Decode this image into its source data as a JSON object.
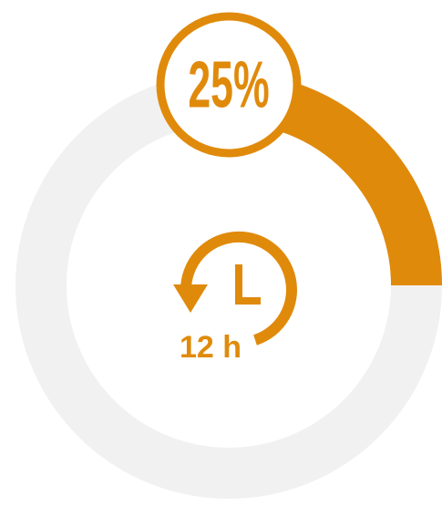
{
  "chart_data": {
    "type": "donut",
    "values": [
      25
    ],
    "value_labels": [
      "25%"
    ],
    "color": "#e08a0b",
    "track_color": "#f1f1f1",
    "annotation": "12 h"
  }
}
